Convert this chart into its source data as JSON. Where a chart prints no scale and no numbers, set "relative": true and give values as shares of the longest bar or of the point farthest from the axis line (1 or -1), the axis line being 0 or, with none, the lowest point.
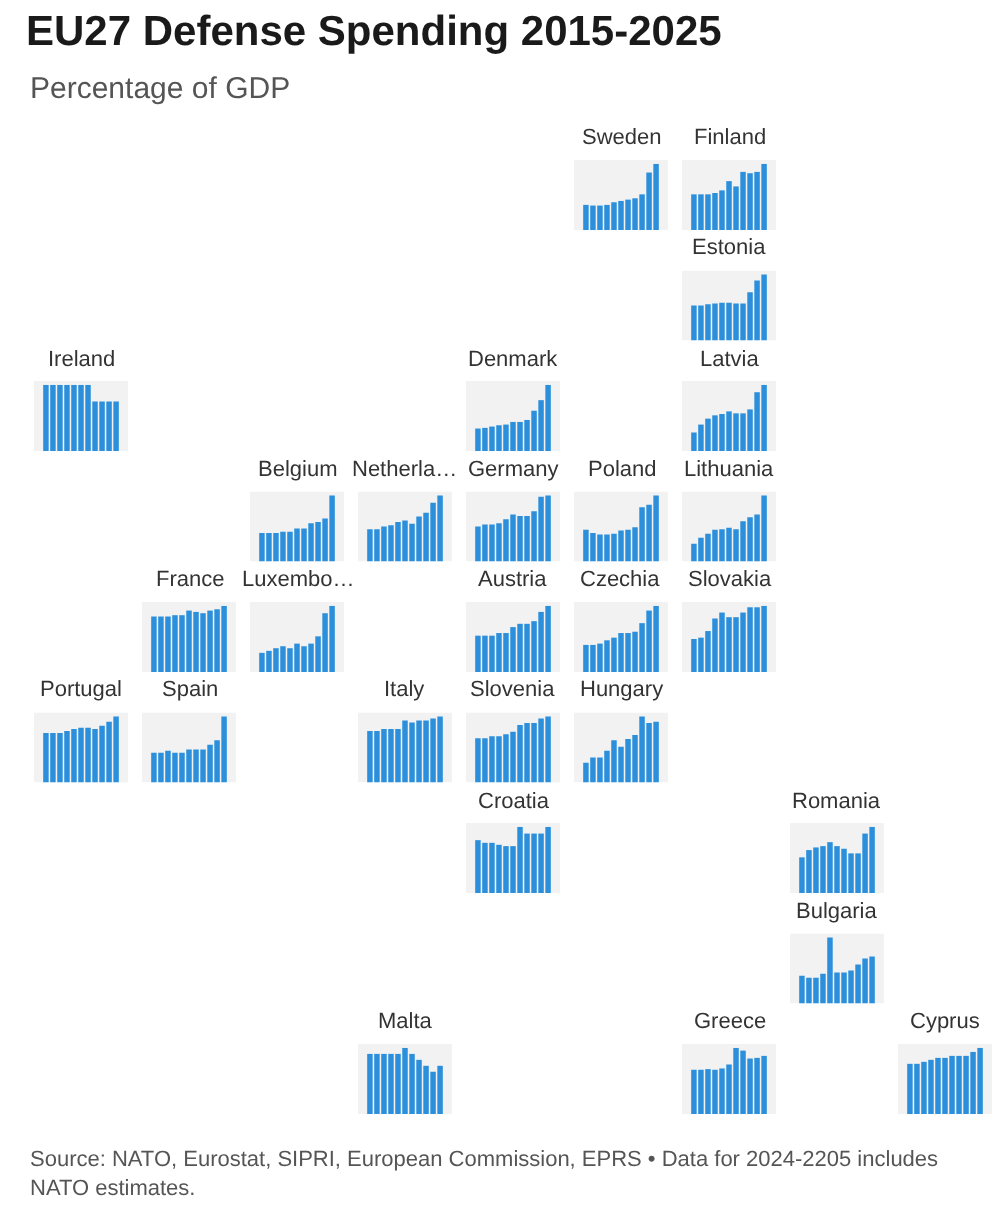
{
  "chart_data": [
    {
      "type": "other",
      "title": "EU27 Defense Spending 2015-2025",
      "subtitle": "Percentage of GDP"
    },
    {
      "type": "bar",
      "title": "Sweden",
      "relative": true,
      "color": "#2b8fdb",
      "categories": [
        null,
        null,
        null,
        null,
        null,
        null,
        null,
        null,
        null,
        null,
        null
      ],
      "values": [
        0.38,
        0.37,
        0.37,
        0.38,
        0.42,
        0.44,
        0.46,
        0.48,
        0.54,
        0.87,
        1.0
      ]
    },
    {
      "type": "bar",
      "title": "Finland",
      "relative": true,
      "color": "#2b8fdb",
      "categories": [
        null,
        null,
        null,
        null,
        null,
        null,
        null,
        null,
        null,
        null,
        null
      ],
      "values": [
        0.54,
        0.54,
        0.54,
        0.56,
        0.6,
        0.74,
        0.66,
        0.88,
        0.86,
        0.88,
        1.0
      ]
    },
    {
      "type": "bar",
      "title": "Estonia",
      "relative": true,
      "color": "#2b8fdb",
      "categories": [
        null,
        null,
        null,
        null,
        null,
        null,
        null,
        null,
        null,
        null,
        null
      ],
      "values": [
        0.53,
        0.53,
        0.55,
        0.56,
        0.57,
        0.57,
        0.56,
        0.56,
        0.73,
        0.91,
        1.0
      ]
    },
    {
      "type": "bar",
      "title": "Ireland",
      "relative": true,
      "color": "#2b8fdb",
      "categories": [
        null,
        null,
        null,
        null,
        null,
        null,
        null,
        null,
        null,
        null,
        null
      ],
      "values": [
        1.0,
        1.0,
        1.0,
        1.0,
        1.0,
        1.0,
        1.0,
        0.75,
        0.75,
        0.75,
        0.75
      ]
    },
    {
      "type": "bar",
      "title": "Denmark",
      "relative": true,
      "color": "#2b8fdb",
      "categories": [
        null,
        null,
        null,
        null,
        null,
        null,
        null,
        null,
        null,
        null,
        null
      ],
      "values": [
        0.34,
        0.35,
        0.37,
        0.39,
        0.4,
        0.44,
        0.44,
        0.47,
        0.61,
        0.77,
        1.0
      ]
    },
    {
      "type": "bar",
      "title": "Latvia",
      "relative": true,
      "color": "#2b8fdb",
      "categories": [
        null,
        null,
        null,
        null,
        null,
        null,
        null,
        null,
        null,
        null,
        null
      ],
      "values": [
        0.28,
        0.4,
        0.49,
        0.54,
        0.56,
        0.6,
        0.57,
        0.57,
        0.63,
        0.89,
        1.0
      ]
    },
    {
      "type": "bar",
      "title": "Belgium",
      "relative": true,
      "color": "#2b8fdb",
      "categories": [
        null,
        null,
        null,
        null,
        null,
        null,
        null,
        null,
        null,
        null,
        null
      ],
      "values": [
        0.43,
        0.43,
        0.43,
        0.45,
        0.45,
        0.5,
        0.5,
        0.58,
        0.6,
        0.65,
        1.0
      ]
    },
    {
      "type": "bar",
      "title": "Netherla…",
      "relative": true,
      "color": "#2b8fdb",
      "categories": [
        null,
        null,
        null,
        null,
        null,
        null,
        null,
        null,
        null,
        null,
        null
      ],
      "values": [
        0.49,
        0.49,
        0.53,
        0.55,
        0.6,
        0.62,
        0.57,
        0.68,
        0.74,
        0.89,
        1.0
      ]
    },
    {
      "type": "bar",
      "title": "Germany",
      "relative": true,
      "color": "#2b8fdb",
      "categories": [
        null,
        null,
        null,
        null,
        null,
        null,
        null,
        null,
        null,
        null,
        null
      ],
      "values": [
        0.53,
        0.56,
        0.56,
        0.58,
        0.64,
        0.71,
        0.69,
        0.69,
        0.76,
        0.98,
        1.0
      ]
    },
    {
      "type": "bar",
      "title": "Poland",
      "relative": true,
      "color": "#2b8fdb",
      "categories": [
        null,
        null,
        null,
        null,
        null,
        null,
        null,
        null,
        null,
        null,
        null
      ],
      "values": [
        0.48,
        0.43,
        0.41,
        0.41,
        0.42,
        0.47,
        0.48,
        0.52,
        0.82,
        0.86,
        1.0
      ]
    },
    {
      "type": "bar",
      "title": "Lithuania",
      "relative": true,
      "color": "#2b8fdb",
      "categories": [
        null,
        null,
        null,
        null,
        null,
        null,
        null,
        null,
        null,
        null,
        null
      ],
      "values": [
        0.27,
        0.36,
        0.42,
        0.48,
        0.49,
        0.51,
        0.49,
        0.61,
        0.67,
        0.71,
        1.0
      ]
    },
    {
      "type": "bar",
      "title": "France",
      "relative": true,
      "color": "#2b8fdb",
      "categories": [
        null,
        null,
        null,
        null,
        null,
        null,
        null,
        null,
        null,
        null,
        null
      ],
      "values": [
        0.84,
        0.84,
        0.84,
        0.86,
        0.86,
        0.93,
        0.91,
        0.89,
        0.93,
        0.95,
        1.0
      ]
    },
    {
      "type": "bar",
      "title": "Luxembo…",
      "relative": true,
      "color": "#2b8fdb",
      "categories": [
        null,
        null,
        null,
        null,
        null,
        null,
        null,
        null,
        null,
        null,
        null
      ],
      "values": [
        0.29,
        0.32,
        0.36,
        0.39,
        0.36,
        0.43,
        0.39,
        0.43,
        0.54,
        0.89,
        1.0
      ]
    },
    {
      "type": "bar",
      "title": "Austria",
      "relative": true,
      "color": "#2b8fdb",
      "categories": [
        null,
        null,
        null,
        null,
        null,
        null,
        null,
        null,
        null,
        null,
        null
      ],
      "values": [
        0.55,
        0.55,
        0.55,
        0.59,
        0.59,
        0.68,
        0.73,
        0.73,
        0.77,
        0.91,
        1.0
      ]
    },
    {
      "type": "bar",
      "title": "Czechia",
      "relative": true,
      "color": "#2b8fdb",
      "categories": [
        null,
        null,
        null,
        null,
        null,
        null,
        null,
        null,
        null,
        null,
        null
      ],
      "values": [
        0.41,
        0.41,
        0.43,
        0.48,
        0.52,
        0.59,
        0.59,
        0.61,
        0.74,
        0.93,
        1.0
      ]
    },
    {
      "type": "bar",
      "title": "Slovakia",
      "relative": true,
      "color": "#2b8fdb",
      "categories": [
        null,
        null,
        null,
        null,
        null,
        null,
        null,
        null,
        null,
        null,
        null
      ],
      "values": [
        0.5,
        0.52,
        0.62,
        0.81,
        0.9,
        0.83,
        0.83,
        0.9,
        0.98,
        0.98,
        1.0
      ]
    },
    {
      "type": "bar",
      "title": "Portugal",
      "relative": true,
      "color": "#2b8fdb",
      "categories": [
        null,
        null,
        null,
        null,
        null,
        null,
        null,
        null,
        null,
        null,
        null
      ],
      "values": [
        0.75,
        0.75,
        0.75,
        0.78,
        0.81,
        0.83,
        0.83,
        0.81,
        0.86,
        0.92,
        1.0
      ]
    },
    {
      "type": "bar",
      "title": "Spain",
      "relative": true,
      "color": "#2b8fdb",
      "categories": [
        null,
        null,
        null,
        null,
        null,
        null,
        null,
        null,
        null,
        null,
        null
      ],
      "values": [
        0.45,
        0.45,
        0.48,
        0.45,
        0.45,
        0.5,
        0.5,
        0.5,
        0.57,
        0.64,
        1.0
      ]
    },
    {
      "type": "bar",
      "title": "Italy",
      "relative": true,
      "color": "#2b8fdb",
      "categories": [
        null,
        null,
        null,
        null,
        null,
        null,
        null,
        null,
        null,
        null,
        null
      ],
      "values": [
        0.78,
        0.78,
        0.81,
        0.81,
        0.81,
        0.94,
        0.91,
        0.94,
        0.94,
        0.97,
        1.0
      ]
    },
    {
      "type": "bar",
      "title": "Slovenia",
      "relative": true,
      "color": "#2b8fdb",
      "categories": [
        null,
        null,
        null,
        null,
        null,
        null,
        null,
        null,
        null,
        null,
        null
      ],
      "values": [
        0.67,
        0.67,
        0.7,
        0.7,
        0.73,
        0.77,
        0.87,
        0.9,
        0.9,
        0.97,
        1.0
      ]
    },
    {
      "type": "bar",
      "title": "Hungary",
      "relative": true,
      "color": "#2b8fdb",
      "categories": [
        null,
        null,
        null,
        null,
        null,
        null,
        null,
        null,
        null,
        null,
        null
      ],
      "values": [
        0.3,
        0.38,
        0.38,
        0.48,
        0.64,
        0.54,
        0.66,
        0.72,
        1.0,
        0.9,
        0.92
      ]
    },
    {
      "type": "bar",
      "title": "Croatia",
      "relative": true,
      "color": "#2b8fdb",
      "categories": [
        null,
        null,
        null,
        null,
        null,
        null,
        null,
        null,
        null,
        null,
        null
      ],
      "values": [
        0.8,
        0.76,
        0.76,
        0.73,
        0.71,
        0.71,
        1.0,
        0.9,
        0.9,
        0.9,
        1.0
      ]
    },
    {
      "type": "bar",
      "title": "Romania",
      "relative": true,
      "color": "#2b8fdb",
      "categories": [
        null,
        null,
        null,
        null,
        null,
        null,
        null,
        null,
        null,
        null,
        null
      ],
      "values": [
        0.54,
        0.65,
        0.69,
        0.71,
        0.77,
        0.71,
        0.67,
        0.6,
        0.6,
        0.9,
        1.0
      ]
    },
    {
      "type": "bar",
      "title": "Bulgaria",
      "relative": true,
      "color": "#2b8fdb",
      "categories": [
        null,
        null,
        null,
        null,
        null,
        null,
        null,
        null,
        null,
        null,
        null
      ],
      "values": [
        0.42,
        0.39,
        0.39,
        0.45,
        1.0,
        0.47,
        0.47,
        0.5,
        0.59,
        0.68,
        0.71
      ]
    },
    {
      "type": "bar",
      "title": "Malta",
      "relative": true,
      "color": "#2b8fdb",
      "categories": [
        null,
        null,
        null,
        null,
        null,
        null,
        null,
        null,
        null,
        null,
        null
      ],
      "values": [
        0.91,
        0.91,
        0.91,
        0.91,
        0.91,
        1.0,
        0.91,
        0.82,
        0.73,
        0.64,
        0.73
      ]
    },
    {
      "type": "bar",
      "title": "Greece",
      "relative": true,
      "color": "#2b8fdb",
      "categories": [
        null,
        null,
        null,
        null,
        null,
        null,
        null,
        null,
        null,
        null,
        null
      ],
      "values": [
        0.67,
        0.67,
        0.68,
        0.67,
        0.69,
        0.75,
        1.0,
        0.96,
        0.84,
        0.85,
        0.88
      ]
    },
    {
      "type": "bar",
      "title": "Cyprus",
      "relative": true,
      "color": "#2b8fdb",
      "categories": [
        null,
        null,
        null,
        null,
        null,
        null,
        null,
        null,
        null,
        null,
        null
      ],
      "values": [
        0.76,
        0.76,
        0.79,
        0.82,
        0.85,
        0.85,
        0.88,
        0.88,
        0.88,
        0.94,
        1.0
      ]
    },
    {
      "type": "other",
      "annotations": [
        "Source: NATO, Eurostat, SIPRI, European Commission, EPRS • Data for 2024-2205 includes NATO estimates."
      ]
    }
  ]
}
